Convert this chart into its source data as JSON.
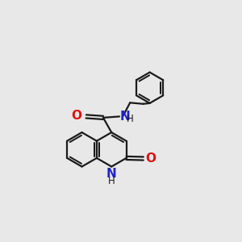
{
  "bg_color": "#e8e8e8",
  "bond_color": "#1a1a1a",
  "N_color": "#2222cc",
  "O_color": "#dd1111",
  "line_width": 1.6,
  "font_size": 10,
  "fig_size": [
    3.0,
    3.0
  ],
  "dpi": 100,
  "xlim": [
    0,
    10
  ],
  "ylim": [
    0,
    10
  ]
}
